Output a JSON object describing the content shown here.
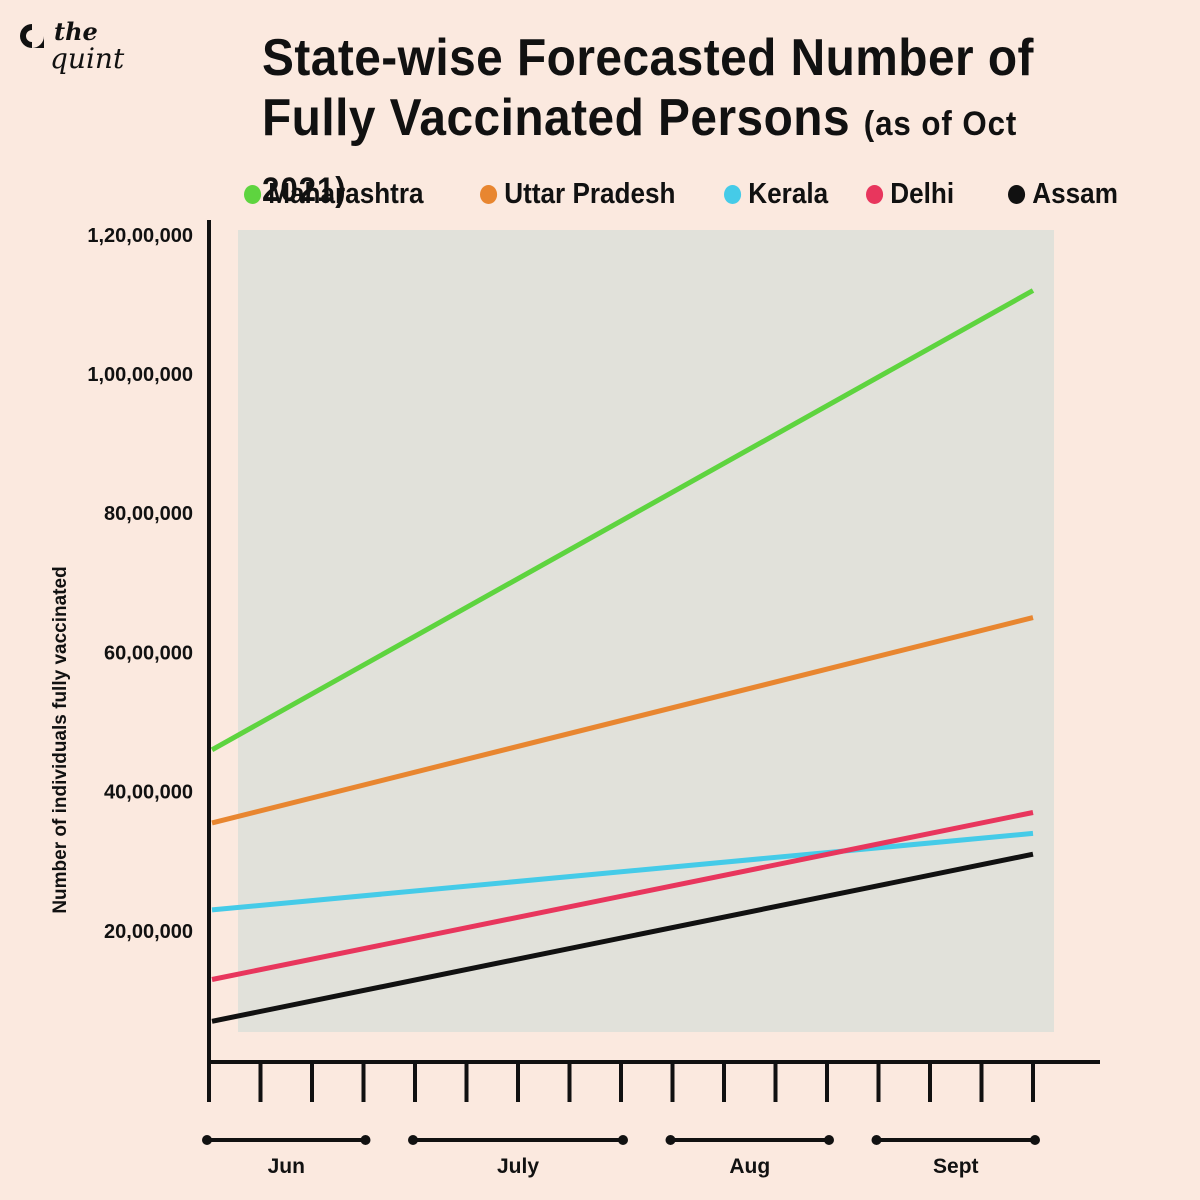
{
  "brand": {
    "the": "the",
    "quint": "quint"
  },
  "chart_data": {
    "type": "line",
    "title": "State-wise Forecasted Number of Fully Vaccinated Persons",
    "subtitle": "(as of Oct 2021)",
    "ylabel": "Number of individuals fully vaccinated",
    "xlabel": "",
    "ylim": [
      0,
      12000000
    ],
    "yticks": [
      {
        "value": 2000000,
        "label": "20,00,000"
      },
      {
        "value": 4000000,
        "label": "40,00,000"
      },
      {
        "value": 6000000,
        "label": "60,00,000"
      },
      {
        "value": 8000000,
        "label": "80,00,000"
      },
      {
        "value": 10000000,
        "label": "1,00,00,000"
      },
      {
        "value": 12000000,
        "label": "1,20,00,000"
      }
    ],
    "x_ticks": 17,
    "months": [
      {
        "label": "Jun",
        "start": 0,
        "end": 3
      },
      {
        "label": "July",
        "start": 4,
        "end": 8
      },
      {
        "label": "Aug",
        "start": 9,
        "end": 12
      },
      {
        "label": "Sept",
        "start": 13,
        "end": 16
      }
    ],
    "x": [
      0,
      16
    ],
    "legend_position": "top",
    "series": [
      {
        "name": "Maharashtra",
        "color": "#5ed43f",
        "values": [
          4600000,
          11200000
        ]
      },
      {
        "name": "Uttar Pradesh",
        "color": "#e88630",
        "values": [
          3550000,
          6500000
        ]
      },
      {
        "name": "Kerala",
        "color": "#45cbe8",
        "values": [
          2300000,
          3400000
        ]
      },
      {
        "name": "Delhi",
        "color": "#e8365d",
        "values": [
          1300000,
          3700000
        ]
      },
      {
        "name": "Assam",
        "color": "#111111",
        "values": [
          700000,
          3100000
        ]
      }
    ]
  }
}
